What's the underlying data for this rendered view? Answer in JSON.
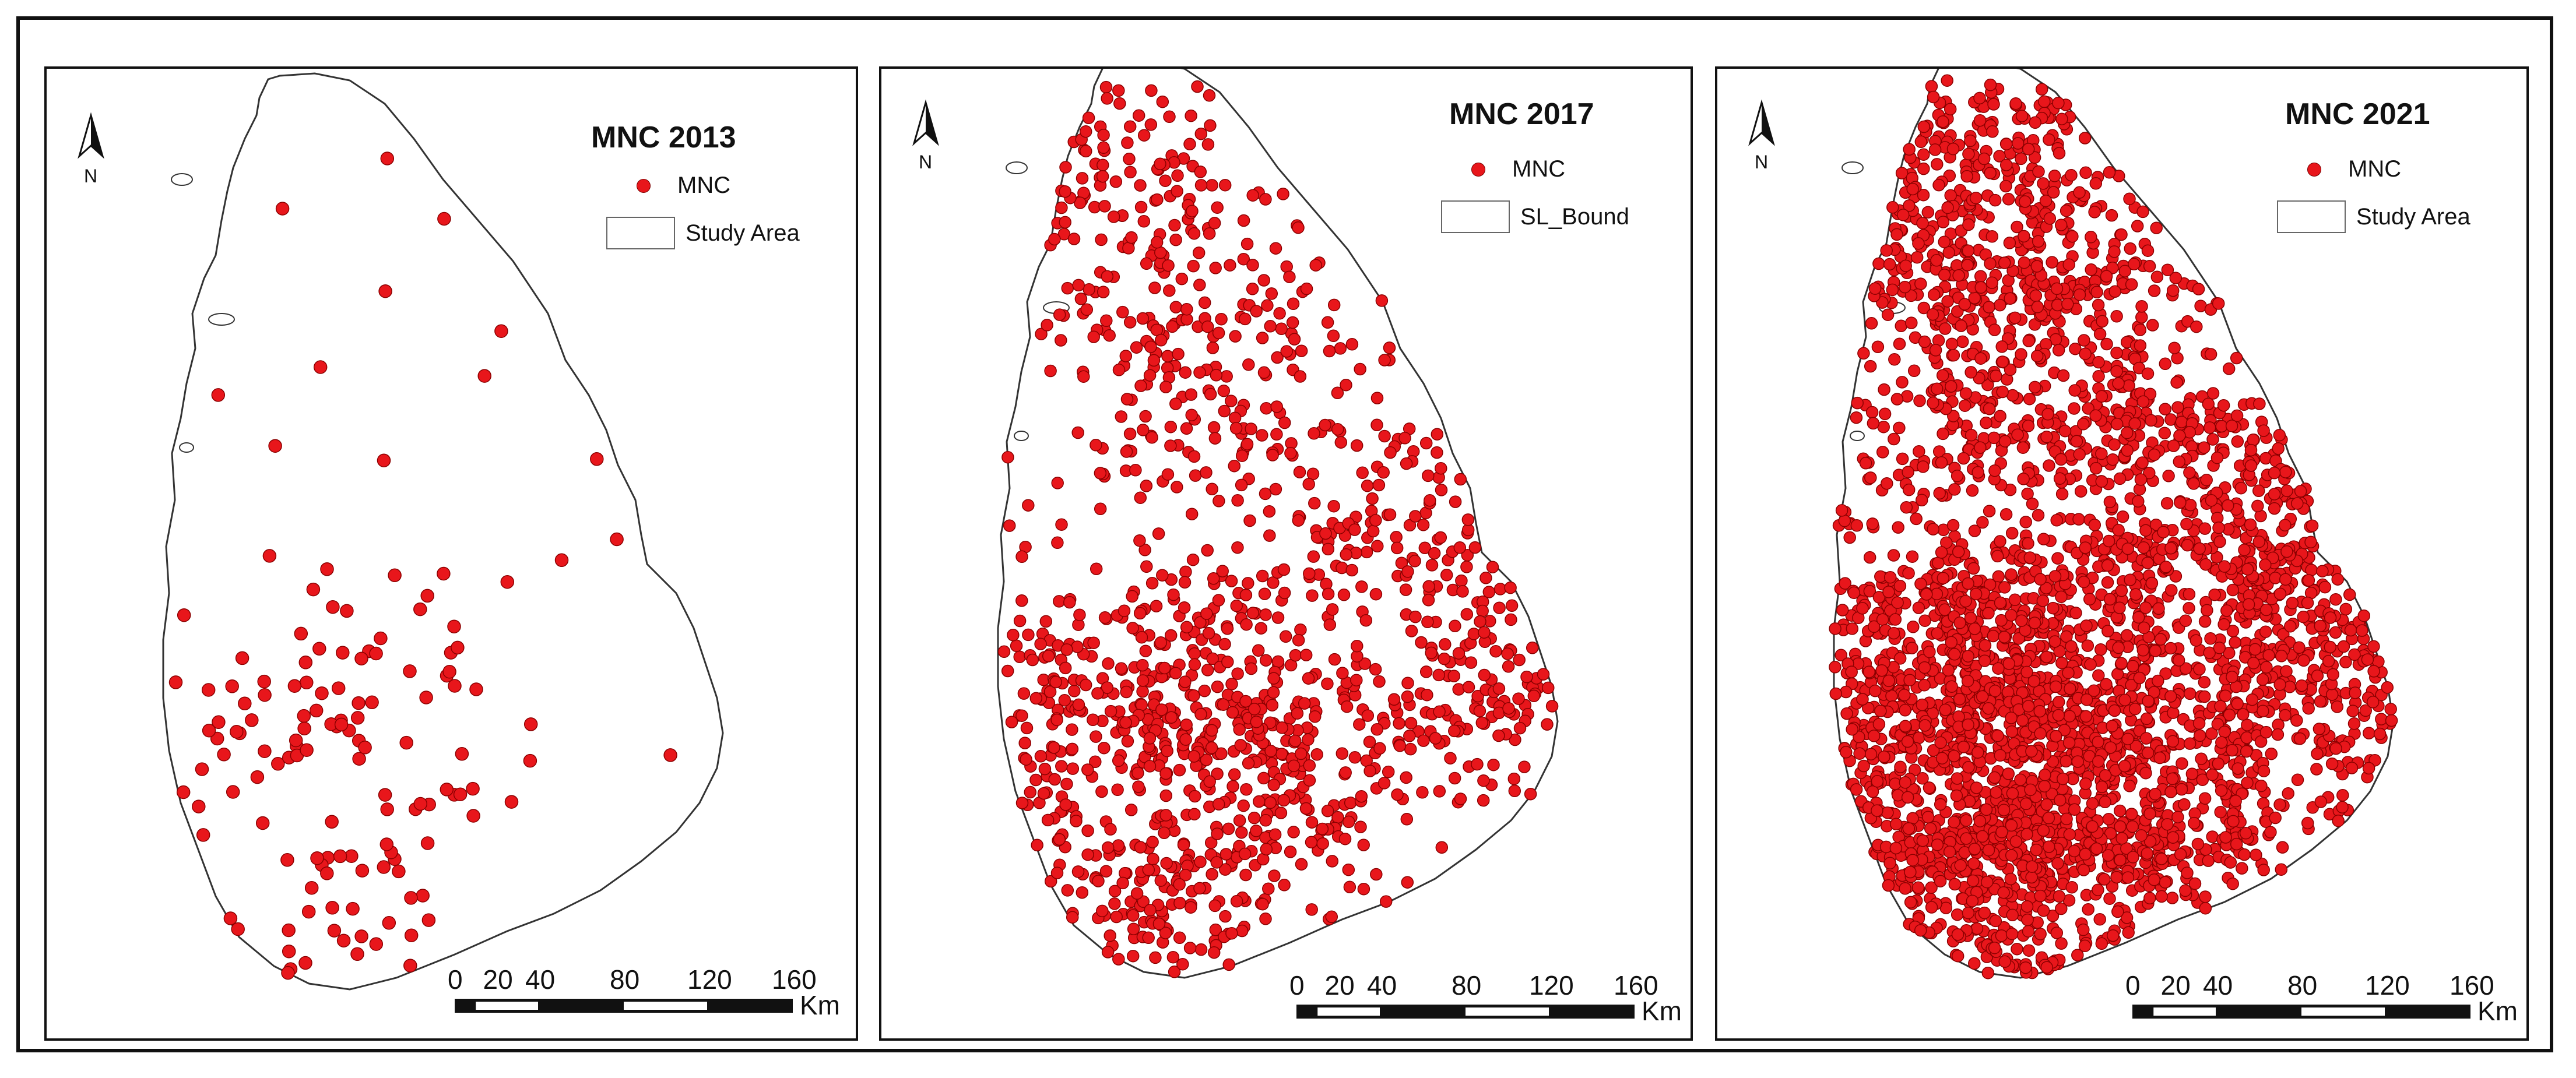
{
  "maps": [
    {
      "title": "MNC 2013",
      "legend_point": "MNC",
      "legend_area": "Study Area",
      "point_count": 140
    },
    {
      "title": "MNC 2017",
      "legend_point": "MNC",
      "legend_area": "SL_Bound",
      "point_count": 1300
    },
    {
      "title": "MNC 2021",
      "legend_point": "MNC",
      "legend_area": "Study Area",
      "point_count": 3400
    }
  ],
  "north_label": "N",
  "scale": {
    "ticks": [
      "0",
      "20",
      "40",
      "80",
      "120",
      "160"
    ],
    "unit": "Km"
  },
  "colors": {
    "point": "#e8161b",
    "point_stroke": "#8b0000",
    "outline": "#333333"
  }
}
